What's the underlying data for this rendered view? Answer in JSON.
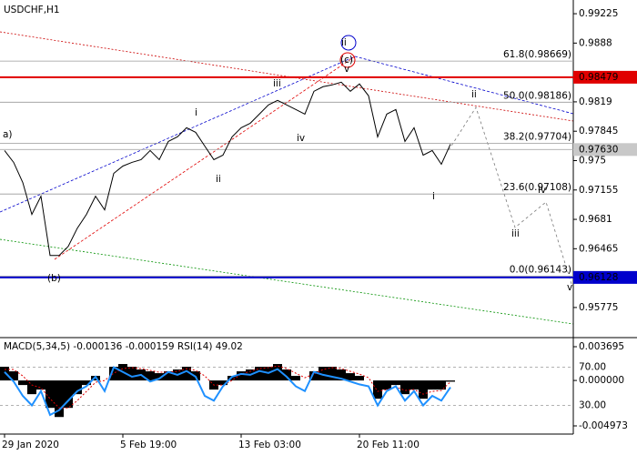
{
  "chart_data": [
    {
      "type": "line",
      "title": "USDCHF,H1",
      "categories": [
        "29 Jan 2020",
        null,
        null,
        null,
        null,
        null,
        null,
        null,
        null,
        null,
        null,
        null,
        null,
        "5 Feb 19:00",
        null,
        null,
        null,
        null,
        null,
        null,
        null,
        null,
        null,
        null,
        null,
        null,
        "13 Feb 03:00",
        null,
        null,
        null,
        null,
        null,
        null,
        null,
        null,
        null,
        null,
        null,
        null,
        "20 Feb 11:00",
        null,
        null,
        null,
        null,
        null,
        null,
        null,
        null,
        null,
        null
      ],
      "series": [
        {
          "color": "#000000",
          "values": [
            0.97618,
            0.97479,
            0.97243,
            0.96868,
            0.97082,
            0.96386,
            0.96386,
            0.96493,
            0.96707,
            0.96868,
            0.97082,
            0.96921,
            0.9735,
            0.97436,
            0.97479,
            0.97511,
            0.97618,
            0.97511,
            0.97725,
            0.97779,
            0.97886,
            0.97832,
            0.97671,
            0.97511,
            0.97564,
            0.97779,
            0.97886,
            0.97939,
            0.98046,
            0.98154,
            0.98207,
            0.98154,
            0.981,
            0.98046,
            0.98314,
            0.98368,
            0.98389,
            0.98421,
            0.98314,
            0.984,
            0.98261,
            0.97779,
            0.98046,
            0.981,
            0.97725,
            0.97886,
            0.97564,
            0.97618,
            0.97457,
            0.97693
          ]
        }
      ],
      "ylim": [
        0.95432,
        0.99354
      ],
      "yticks": [
        0.99225,
        0.9888,
        0.9819,
        0.97845,
        0.975,
        0.97155,
        0.9681,
        0.96465,
        0.95775
      ],
      "hlines": [
        {
          "value": 0.98479,
          "color": "#e00000"
        },
        {
          "value": 0.96128,
          "color": "#0000cc"
        }
      ],
      "current_price": {
        "value": 0.9763,
        "label": "0.97630"
      },
      "fib_levels": [
        {
          "value": 0.98669,
          "label": "61.8(0.98669)"
        },
        {
          "value": 0.98186,
          "label": "50.0(0.98186)"
        },
        {
          "value": 0.97704,
          "label": "38.2(0.97704)"
        },
        {
          "value": 0.97108,
          "label": "23.6(0.97108)"
        },
        {
          "value": 0.96143,
          "label": "0.0(0.96143)"
        }
      ],
      "annotations": [
        "a)",
        "(b)",
        "(c)",
        "ii",
        "i",
        "ii",
        "iii",
        "iv",
        "v",
        "i",
        "ii",
        "iii",
        "iv",
        "v"
      ]
    },
    {
      "type": "bar",
      "title": "MACD(5,34,5) -0.000136 -0.000159 RSI(14) 49.02",
      "ylim": [
        -0.004973,
        0.003695
      ],
      "yticks": [
        0.003695,
        {
          "value": 0,
          "label": "0.000000"
        },
        -0.004973
      ],
      "y2lim": [
        0,
        100
      ],
      "y2ticks": [
        {
          "value": 70,
          "label": "70.00"
        },
        {
          "value": 30,
          "label": "30.00"
        }
      ],
      "series": [
        {
          "kind": "bar",
          "color": "#000000",
          "values": [
            0.0015,
            0.001,
            -0.0005,
            -0.0015,
            -0.001,
            -0.003,
            -0.004,
            -0.003,
            -0.0015,
            -0.0005,
            0.0005,
            0,
            0.0015,
            0.0018,
            0.0015,
            0.0012,
            0.001,
            0.0008,
            0.001,
            0.0012,
            0.0015,
            0.001,
            0,
            -0.001,
            -0.0005,
            0.0005,
            0.001,
            0.0012,
            0.0015,
            0.0015,
            0.0018,
            0.0012,
            0.0005,
            0,
            0.001,
            0.0015,
            0.0015,
            0.0012,
            0.0008,
            0.0005,
            0,
            -0.002,
            -0.001,
            -0.0005,
            -0.0015,
            -0.001,
            -0.002,
            -0.001,
            -0.001,
            -0.000136
          ]
        },
        {
          "kind": "line",
          "color": "#e00000",
          "values": [
            0.0012,
            0.0012,
            0.0005,
            -0.0005,
            -0.0008,
            -0.002,
            -0.003,
            -0.003,
            -0.0022,
            -0.0012,
            -0.0002,
            0,
            0.0008,
            0.0013,
            0.0014,
            0.0013,
            0.0011,
            0.0009,
            0.0009,
            0.001,
            0.0013,
            0.0011,
            0.0005,
            -0.0005,
            -0.0005,
            0,
            0.0007,
            0.001,
            0.0013,
            0.0014,
            0.0016,
            0.0013,
            0.0008,
            0.0003,
            0.0007,
            0.0012,
            0.0014,
            0.0013,
            0.001,
            0.0007,
            0.0003,
            -0.0012,
            -0.001,
            -0.0007,
            -0.0011,
            -0.001,
            -0.0015,
            -0.0012,
            -0.0011,
            -0.000159
          ]
        },
        {
          "kind": "line",
          "axis": "y2",
          "color": "#1e90ff",
          "values": [
            65,
            55,
            40,
            30,
            45,
            20,
            25,
            35,
            45,
            50,
            60,
            45,
            70,
            65,
            60,
            62,
            55,
            58,
            65,
            62,
            66,
            60,
            40,
            35,
            50,
            60,
            63,
            62,
            66,
            64,
            68,
            60,
            50,
            45,
            65,
            62,
            60,
            58,
            55,
            52,
            50,
            30,
            45,
            50,
            35,
            45,
            30,
            40,
            35,
            49.02
          ]
        }
      ]
    }
  ]
}
